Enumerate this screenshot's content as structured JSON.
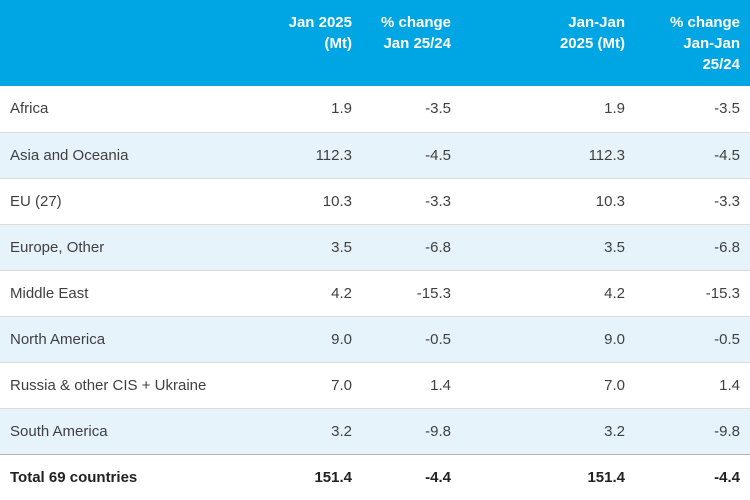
{
  "table": {
    "header": {
      "region": "",
      "col_jan_2025": [
        "Jan 2025",
        "(Mt)"
      ],
      "col_pct_change_jan": [
        "% change",
        "Jan 25/24"
      ],
      "col_jan_jan_2025": [
        "Jan-Jan",
        "2025 (Mt)"
      ],
      "col_pct_change_jan_jan": [
        "% change",
        "Jan-Jan",
        "25/24"
      ]
    },
    "rows": [
      {
        "region": "Africa",
        "values": [
          "1.9",
          "-3.5",
          "1.9",
          "-3.5"
        ]
      },
      {
        "region": "Asia and Oceania",
        "values": [
          "112.3",
          "-4.5",
          "112.3",
          "-4.5"
        ]
      },
      {
        "region": "EU (27)",
        "values": [
          "10.3",
          "-3.3",
          "10.3",
          "-3.3"
        ]
      },
      {
        "region": "Europe, Other",
        "values": [
          "3.5",
          "-6.8",
          "3.5",
          "-6.8"
        ]
      },
      {
        "region": "Middle East",
        "values": [
          "4.2",
          "-15.3",
          "4.2",
          "-15.3"
        ]
      },
      {
        "region": "North America",
        "values": [
          "9.0",
          "-0.5",
          "9.0",
          "-0.5"
        ]
      },
      {
        "region": "Russia & other CIS + Ukraine",
        "values": [
          "7.0",
          "1.4",
          "7.0",
          "1.4"
        ]
      },
      {
        "region": "South America",
        "values": [
          "3.2",
          "-9.8",
          "3.2",
          "-9.8"
        ]
      }
    ],
    "total": {
      "region": "Total 69 countries",
      "values": [
        "151.4",
        "-4.4",
        "151.4",
        "-4.4"
      ]
    }
  },
  "colors": {
    "header_bg": "#00A6E3",
    "header_text": "#FFFFFF",
    "stripe_bg": "#E6F3FB",
    "row_border": "#DCDCDC",
    "total_border": "#B3B3B3",
    "body_text": "#404040",
    "total_text": "#222222"
  },
  "chart_data": {
    "type": "table",
    "columns": [
      "",
      "Jan 2025 (Mt)",
      "% change Jan 25/24",
      "Jan-Jan 2025 (Mt)",
      "% change Jan-Jan 25/24"
    ],
    "rows": [
      [
        "Africa",
        1.9,
        -3.5,
        1.9,
        -3.5
      ],
      [
        "Asia and Oceania",
        112.3,
        -4.5,
        112.3,
        -4.5
      ],
      [
        "EU (27)",
        10.3,
        -3.3,
        10.3,
        -3.3
      ],
      [
        "Europe, Other",
        3.5,
        -6.8,
        3.5,
        -6.8
      ],
      [
        "Middle East",
        4.2,
        -15.3,
        4.2,
        -15.3
      ],
      [
        "North America",
        9.0,
        -0.5,
        9.0,
        -0.5
      ],
      [
        "Russia & other CIS + Ukraine",
        7.0,
        1.4,
        7.0,
        1.4
      ],
      [
        "South America",
        3.2,
        -9.8,
        3.2,
        -9.8
      ],
      [
        "Total 69 countries",
        151.4,
        -4.4,
        151.4,
        -4.4
      ]
    ],
    "layout_hints": {
      "header_style": "blue background, white bold, right-aligned, multi-line",
      "stripes": "alternate rows light blue",
      "total_row": "bold with darker top border"
    }
  }
}
